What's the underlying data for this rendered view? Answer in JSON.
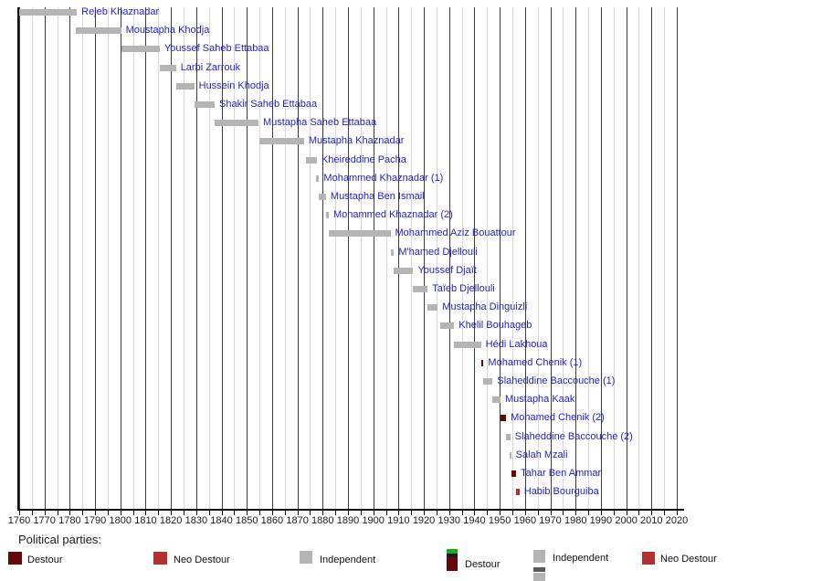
{
  "chart_data": {
    "type": "bar",
    "subtype": "gantt-timeline",
    "title": "",
    "xlabel": "",
    "ylabel": "",
    "xlim": [
      1760,
      2020
    ],
    "x_major_step": 10,
    "x_minor_step": 5,
    "grid": "on",
    "x_ticks": [
      1760,
      1770,
      1780,
      1790,
      1800,
      1810,
      1820,
      1830,
      1840,
      1850,
      1860,
      1870,
      1880,
      1890,
      1900,
      1910,
      1920,
      1930,
      1940,
      1950,
      1960,
      1970,
      1980,
      1990,
      2000,
      2010,
      2020
    ],
    "rows": [
      {
        "label": "Rejeb Khaznadar",
        "start": 1760.0,
        "end": 1782.8,
        "party": "Independent"
      },
      {
        "label": "Moustapha Khodja",
        "start": 1782.5,
        "end": 1800.3,
        "party": "Independent"
      },
      {
        "label": "Youssef Saheb Ettabaa",
        "start": 1800.5,
        "end": 1815.6,
        "party": "Independent"
      },
      {
        "label": "Larbi Zarrouk",
        "start": 1815.6,
        "end": 1822.0,
        "party": "Independent"
      },
      {
        "label": "Hussein Khodja",
        "start": 1822.0,
        "end": 1829.2,
        "party": "Independent"
      },
      {
        "label": "Shakir Saheb Ettabaa",
        "start": 1829.2,
        "end": 1837.3,
        "party": "Independent"
      },
      {
        "label": "Mustapha Saheb Ettabaa",
        "start": 1837.3,
        "end": 1854.6,
        "party": "Independent"
      },
      {
        "label": "Mustapha Khaznadar",
        "start": 1855.0,
        "end": 1872.6,
        "party": "Independent"
      },
      {
        "label": "Kheireddine Pacha",
        "start": 1873.4,
        "end": 1877.7,
        "party": "Independent"
      },
      {
        "label": "Mohammed Khaznadar (1)",
        "start": 1877.5,
        "end": 1878.6,
        "party": "Independent"
      },
      {
        "label": "Mustapha Ben Ismail",
        "start": 1878.6,
        "end": 1881.3,
        "party": "Independent"
      },
      {
        "label": "Mohammed Khaznadar (2)",
        "start": 1881.3,
        "end": 1882.4,
        "party": "Independent"
      },
      {
        "label": "Mohammed Aziz Bouattour",
        "start": 1882.4,
        "end": 1906.8,
        "party": "Independent"
      },
      {
        "label": "M'hamed Djellouli",
        "start": 1906.8,
        "end": 1908.2,
        "party": "Independent"
      },
      {
        "label": "Youssef Djaït",
        "start": 1908.2,
        "end": 1915.8,
        "party": "Independent"
      },
      {
        "label": "Taïeb Djellouli",
        "start": 1915.8,
        "end": 1921.5,
        "party": "Independent"
      },
      {
        "label": "Mustapha Dinguizli",
        "start": 1921.5,
        "end": 1925.5,
        "party": "Independent"
      },
      {
        "label": "Khelil Bouhageb",
        "start": 1926.5,
        "end": 1932.0,
        "party": "Independent"
      },
      {
        "label": "Hédi Lakhoua",
        "start": 1932.0,
        "end": 1942.6,
        "party": "Independent"
      },
      {
        "label": "Mohamed Chenik (1)",
        "start": 1942.7,
        "end": 1943.6,
        "party": "Destour"
      },
      {
        "label": "Slaheddine Baccouche (1)",
        "start": 1943.6,
        "end": 1947.2,
        "party": "Independent"
      },
      {
        "label": "Mustapha Kaak",
        "start": 1947.2,
        "end": 1950.3,
        "party": "Independent"
      },
      {
        "label": "Mohamed Chenik (2)",
        "start": 1950.3,
        "end": 1952.5,
        "party": "Destour"
      },
      {
        "label": "Slaheddine Baccouche (2)",
        "start": 1952.5,
        "end": 1954.2,
        "party": "Independent"
      },
      {
        "label": "Salah Mzali",
        "start": 1953.8,
        "end": 1954.5,
        "party": "Independent"
      },
      {
        "label": "Tahar Ben Ammar",
        "start": 1954.5,
        "end": 1956.5,
        "party": "Destour"
      },
      {
        "label": "Habib Bourguiba",
        "start": 1956.5,
        "end": 1957.8,
        "party": "Neo Destour"
      }
    ]
  },
  "parties": {
    "Destour": "#670808",
    "Neo Destour": "#b23030",
    "Independent": "#b4b4b4"
  },
  "colors": {
    "name_label": "#2222cc",
    "grid_major": "#3c3c3c",
    "grid_minor": "#d8d8d8",
    "axis": "#111111",
    "legend_green": "#1fa81f",
    "legend_black_band": "#1c1c1c",
    "legend_gray_stripe": "#5a5a5a"
  },
  "legend": {
    "heading": "Political parties:",
    "items_left": [
      {
        "label": "Destour",
        "party": "Destour"
      },
      {
        "label": "Neo Destour",
        "party": "Neo Destour"
      },
      {
        "label": "Independent",
        "party": "Independent"
      }
    ],
    "items_right": [
      {
        "label": "Destour",
        "party": "Destour"
      },
      {
        "label": "Independent",
        "party": "Independent"
      },
      {
        "label": "Neo Destour",
        "party": "Neo Destour"
      }
    ]
  }
}
